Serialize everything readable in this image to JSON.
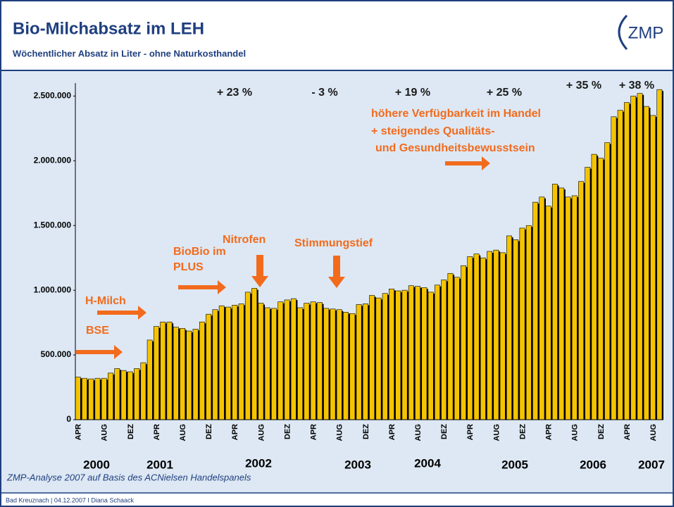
{
  "chart_data": {
    "type": "bar",
    "title": "Bio-Milchabsatz im LEH",
    "subtitle": "Wöchentlicher Absatz in Liter - ohne Naturkosthandel",
    "logo": "ZMP",
    "categories": [
      "APR",
      null,
      null,
      null,
      "AUG",
      null,
      null,
      null,
      "DEZ",
      null,
      null,
      null,
      "APR",
      null,
      null,
      null,
      "AUG",
      null,
      null,
      null,
      "DEZ",
      null,
      null,
      null,
      "APR",
      null,
      null,
      null,
      "AUG",
      null,
      null,
      null,
      "DEZ",
      null,
      null,
      null,
      "APR",
      null,
      null,
      null,
      "AUG",
      null,
      null,
      null,
      "DEZ",
      null,
      null,
      null,
      "APR",
      null,
      null,
      null,
      "AUG",
      null,
      null,
      null,
      "DEZ",
      null,
      null,
      null,
      "APR",
      null,
      null,
      null,
      "AUG",
      null,
      null,
      null,
      "DEZ",
      null,
      null,
      null,
      "APR",
      null,
      null,
      null,
      "AUG",
      null,
      null,
      null,
      "DEZ",
      null,
      null,
      null,
      "APR",
      null,
      null,
      null,
      "AUG",
      null
    ],
    "values": [
      330000,
      320000,
      315000,
      320000,
      320000,
      360000,
      395000,
      380000,
      370000,
      395000,
      440000,
      615000,
      720000,
      755000,
      755000,
      715000,
      705000,
      685000,
      700000,
      755000,
      815000,
      850000,
      880000,
      870000,
      885000,
      895000,
      985000,
      1015000,
      900000,
      865000,
      860000,
      910000,
      925000,
      935000,
      865000,
      900000,
      910000,
      905000,
      860000,
      855000,
      850000,
      830000,
      820000,
      890000,
      895000,
      960000,
      940000,
      975000,
      1010000,
      995000,
      1000000,
      1035000,
      1030000,
      1020000,
      985000,
      1040000,
      1080000,
      1130000,
      1100000,
      1190000,
      1260000,
      1280000,
      1250000,
      1300000,
      1310000,
      1290000,
      1420000,
      1390000,
      1480000,
      1500000,
      1680000,
      1720000,
      1650000,
      1820000,
      1790000,
      1720000,
      1730000,
      1840000,
      1950000,
      2050000,
      2020000,
      2140000,
      2340000,
      2390000,
      2450000,
      2500000,
      2520000,
      2420000,
      2350000,
      2550000
    ],
    "color": "#f5c400",
    "years": [
      "2000",
      "2001",
      "2002",
      "2003",
      "2004",
      "2005",
      "2006",
      "2007"
    ],
    "ylim": [
      0,
      2600000
    ],
    "yticks": [
      0,
      {
        "value": 500000,
        "label": "500.000"
      },
      {
        "value": 1000000,
        "label": "1.000.000"
      },
      {
        "value": 1500000,
        "label": "1.500.000"
      },
      {
        "value": 2000000,
        "label": "2.000.000"
      },
      {
        "value": 2500000,
        "label": "2.500.000"
      }
    ],
    "growth_labels": [
      "+ 23 %",
      "- 3 %",
      "+ 19 %",
      "+ 25 %",
      "+ 35 %",
      "+ 38 %"
    ],
    "annotations": [
      "BSE",
      "H-Milch",
      "BioBio im",
      "PLUS",
      "Nitrofen",
      "Stimmungstief",
      "höhere Verfügbarkeit im Handel",
      "+ steigendes Qualitäts-",
      "und Gesundheitsbewusstsein"
    ],
    "source": "ZMP-Analyse 2007 auf Basis des ACNielsen Handelspanels",
    "footer": "Bad Kreuznach | 04.12.2007 I Diana Schaack"
  }
}
